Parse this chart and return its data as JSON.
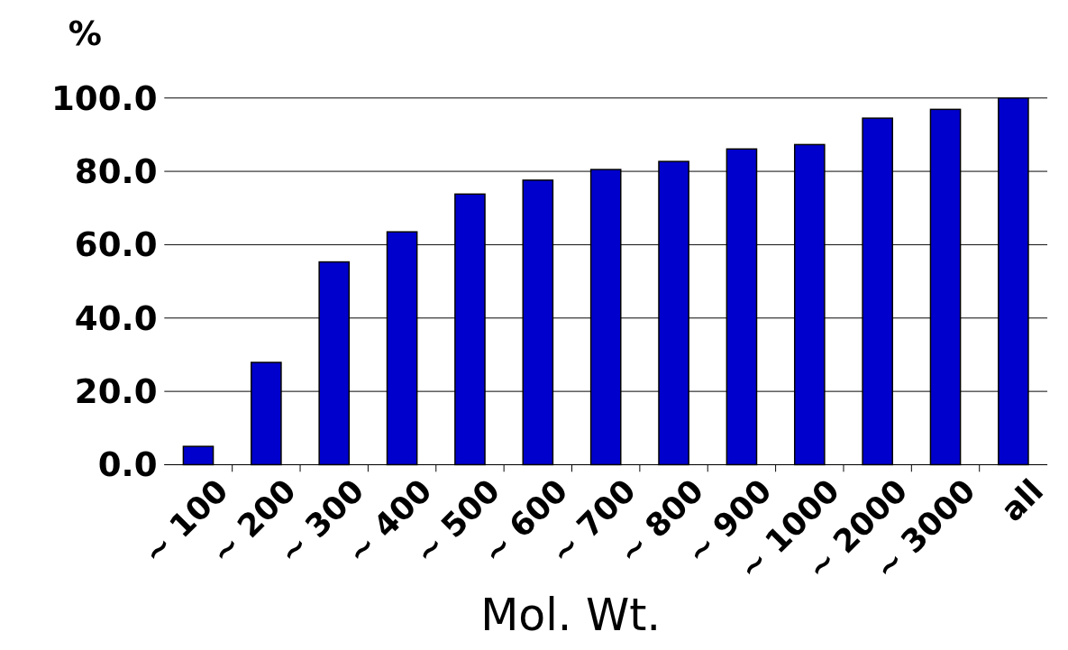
{
  "chart_data": {
    "type": "bar",
    "xlabel": "Mol. Wt.",
    "ylabel": "%",
    "categories": [
      "~ 100",
      "~ 200",
      "~ 300",
      "~ 400",
      "~ 500",
      "~ 600",
      "~ 700",
      "~ 800",
      "~ 900",
      "~ 1000",
      "~ 2000",
      "~ 3000",
      "all"
    ],
    "values": [
      5.0,
      27.9,
      55.3,
      63.5,
      73.8,
      77.6,
      80.5,
      82.7,
      86.1,
      87.3,
      94.5,
      96.9,
      100.0
    ],
    "color": "#0000cc",
    "ylim": [
      0,
      100
    ],
    "yticks": [
      {
        "value": 0,
        "label": "0.0"
      },
      {
        "value": 20,
        "label": "20.0"
      },
      {
        "value": 40,
        "label": "40.0"
      },
      {
        "value": 60,
        "label": "60.0"
      },
      {
        "value": 80,
        "label": "80.0"
      },
      {
        "value": 100,
        "label": "100.0"
      }
    ],
    "grid": "y"
  }
}
